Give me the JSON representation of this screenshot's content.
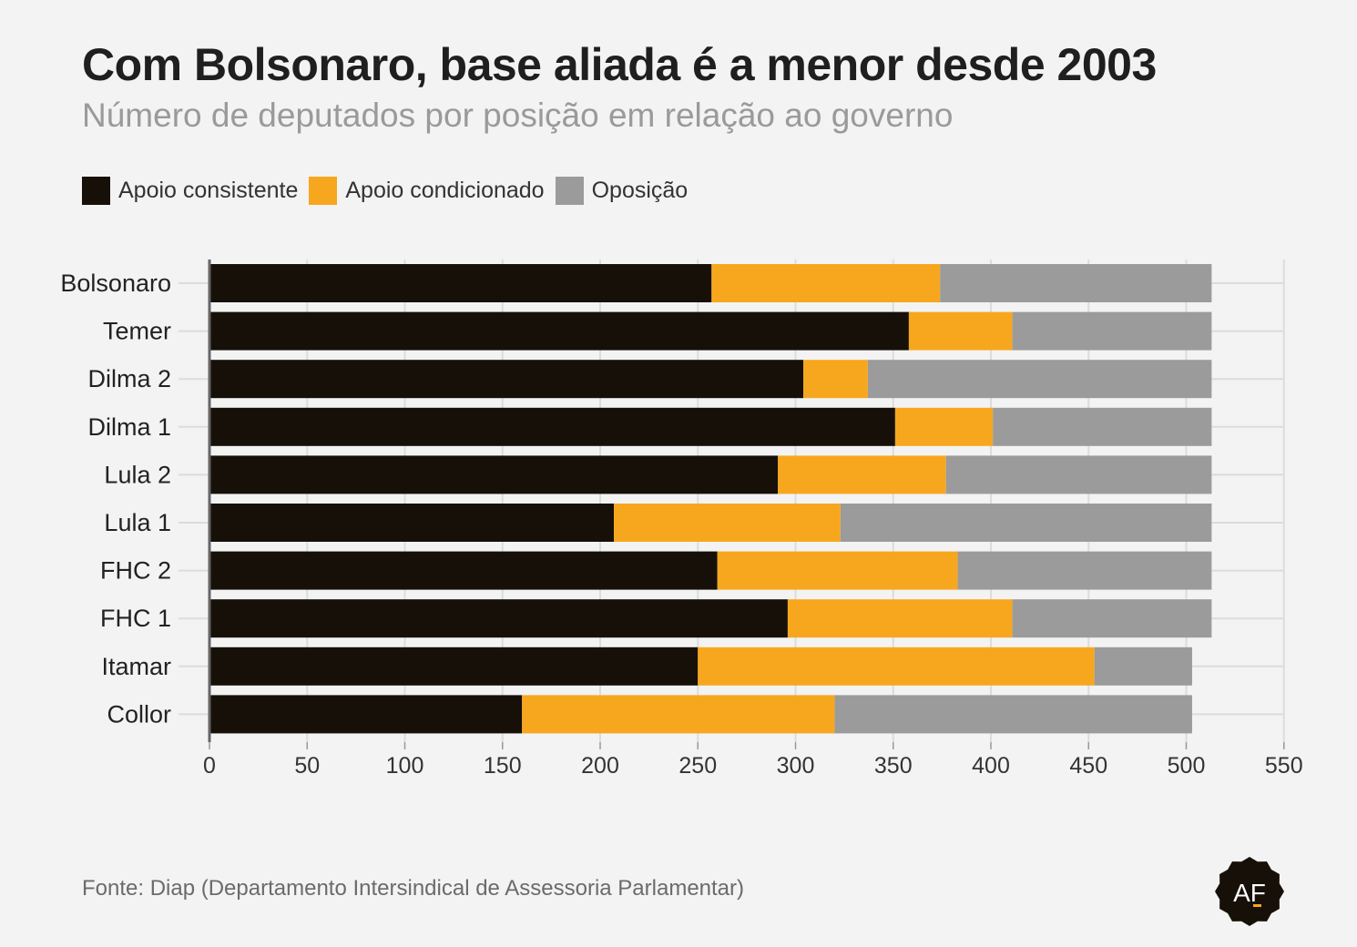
{
  "header": {
    "title": "Com Bolsonaro, base aliada é a menor desde 2003",
    "subtitle": "Número de deputados por posição em relação ao governo"
  },
  "source": "Fonte: Diap (Departamento Intersindical de Assessoria Parlamentar)",
  "logo": {
    "text": "AF",
    "icon": "af-seal-logo"
  },
  "colors": {
    "background": "#f3f3f3",
    "consistent": "#171008",
    "conditional": "#f7a71e",
    "opposition": "#9b9b9b",
    "grid": "#dcdcdc",
    "axis": "#666666"
  },
  "chart_data": {
    "type": "bar",
    "orientation": "horizontal",
    "stacked": true,
    "categories": [
      "Bolsonaro",
      "Temer",
      "Dilma 2",
      "Dilma 1",
      "Lula 2",
      "Lula 1",
      "FHC 2",
      "FHC 1",
      "Itamar",
      "Collor"
    ],
    "series": [
      {
        "name": "Apoio consistente",
        "color": "#171008",
        "values": [
          257,
          358,
          304,
          351,
          291,
          207,
          260,
          296,
          250,
          160
        ]
      },
      {
        "name": "Apoio condicionado",
        "color": "#f7a71e",
        "values": [
          117,
          53,
          33,
          50,
          86,
          116,
          123,
          115,
          203,
          160
        ]
      },
      {
        "name": "Oposição",
        "color": "#9b9b9b",
        "values": [
          139,
          102,
          176,
          112,
          136,
          190,
          130,
          102,
          50,
          183
        ]
      }
    ],
    "xlim": [
      0,
      550
    ],
    "xticks": [
      0,
      50,
      100,
      150,
      200,
      250,
      300,
      350,
      400,
      450,
      500,
      550
    ],
    "grid": true,
    "legend_position": "top-left"
  }
}
